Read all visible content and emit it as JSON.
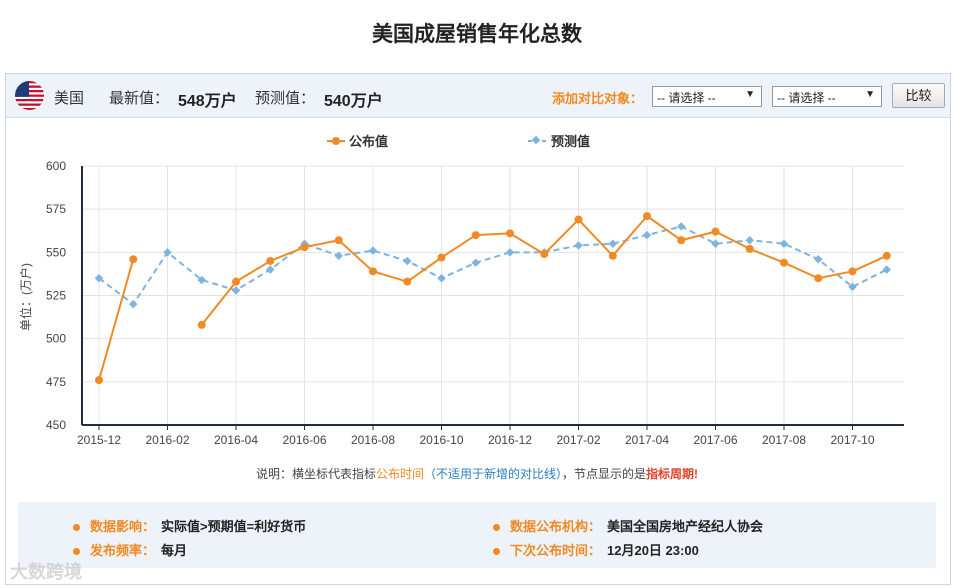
{
  "page": {
    "title": "美国成屋销售年化总数"
  },
  "info_bar": {
    "country": "美国",
    "latest_label": "最新值：",
    "latest_value": "548万户",
    "forecast_label": "预测值：",
    "forecast_value": "540万户",
    "compare_label": "添加对比对象：",
    "select1": "-- 请选择 --",
    "select2": "-- 请选择 --",
    "compare_button": "比较"
  },
  "colors": {
    "actual": "#f08a24",
    "forecast": "#7fb3e0",
    "axis": "#1f2d3d",
    "grid": "#e3e3e3"
  },
  "icons": {
    "flag": "us-flag-icon",
    "dropdown": "chevron-down-icon"
  },
  "chart_data": {
    "type": "line",
    "ylabel": "单位：(万户)",
    "ylim": [
      450,
      600
    ],
    "yticks": [
      450,
      475,
      500,
      525,
      550,
      575,
      600
    ],
    "x": [
      "2015-12",
      "2016-01",
      "2016-02",
      "2016-03",
      "2016-04",
      "2016-05",
      "2016-06",
      "2016-07",
      "2016-08",
      "2016-09",
      "2016-10",
      "2016-11",
      "2016-12",
      "2017-01",
      "2017-02",
      "2017-03",
      "2017-04",
      "2017-05",
      "2017-06",
      "2017-07",
      "2017-08",
      "2017-09",
      "2017-10",
      "2017-11"
    ],
    "xtick_labels": [
      "2015-12",
      "2016-02",
      "2016-04",
      "2016-06",
      "2016-08",
      "2016-10",
      "2016-12",
      "2017-02",
      "2017-04",
      "2017-06",
      "2017-08",
      "2017-10"
    ],
    "series": [
      {
        "name": "公布值",
        "style": "solid",
        "values": [
          476,
          546,
          null,
          508,
          533,
          545,
          553,
          557,
          539,
          533,
          547,
          560,
          561,
          549,
          569,
          548,
          571,
          557,
          562,
          552,
          544,
          535,
          539,
          548
        ]
      },
      {
        "name": "预测值",
        "style": "dashed",
        "values": [
          535,
          520,
          550,
          534,
          528,
          540,
          555,
          548,
          551,
          545,
          535,
          544,
          550,
          550,
          554,
          555,
          560,
          565,
          555,
          557,
          555,
          546,
          530,
          540
        ]
      }
    ]
  },
  "note": {
    "prefix": "说明：横坐标代表指标",
    "publish_time": "公布时间",
    "paren": "（不适用于新增的对比线）",
    "middle": "，节点显示的是",
    "period": "指标周期!"
  },
  "meta": {
    "impact_label": "数据影响：",
    "impact_value": "实际值>预期值=利好货币",
    "agency_label": "数据公布机构：",
    "agency_value": "美国全国房地产经纪人协会",
    "freq_label": "发布频率：",
    "freq_value": "每月",
    "next_label": "下次公布时间：",
    "next_value": "12月20日 23:00"
  },
  "watermark": "大数跨境"
}
